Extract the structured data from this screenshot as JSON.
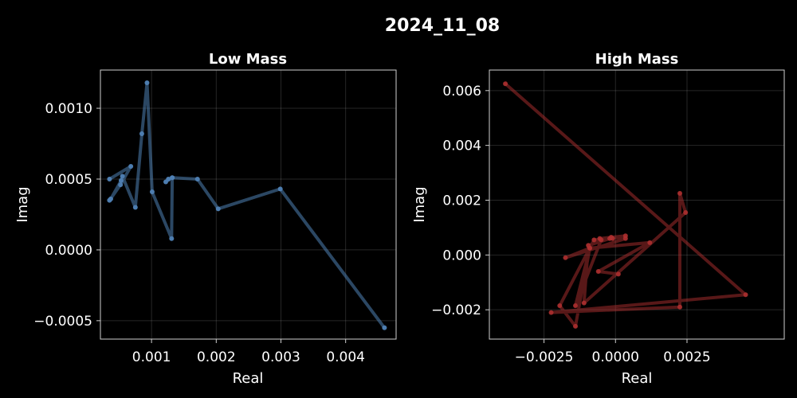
{
  "figure": {
    "title": "2024_11_08",
    "background": "#000000"
  },
  "chart_data": [
    {
      "type": "line",
      "title": "Low Mass",
      "xlabel": "Real",
      "ylabel": "Imag",
      "xlim": [
        0.00021,
        0.00478
      ],
      "ylim": [
        -0.00063,
        0.00127
      ],
      "xticks": [
        0.001,
        0.002,
        0.003,
        0.004
      ],
      "xtick_labels": [
        "0.001",
        "0.002",
        "0.003",
        "0.004"
      ],
      "yticks": [
        -0.0005,
        0.0,
        0.0005,
        0.001
      ],
      "ytick_labels": [
        "−0.0005",
        "0.0000",
        "0.0005",
        "0.0010"
      ],
      "grid": true,
      "color": "#4f81b4",
      "series": [
        {
          "x": [
            0.00035,
            0.00068,
            0.00052,
            0.00035,
            0.00037,
            0.00053,
            0.00055,
            0.00075,
            0.00085,
            0.00093,
            0.00101,
            0.00131,
            0.00132,
            0.00122,
            0.00126,
            0.00132,
            0.00171,
            0.00203,
            0.00299,
            0.0046
          ],
          "y": [
            0.0005,
            0.00059,
            0.00046,
            0.00035,
            0.00036,
            0.00049,
            0.00052,
            0.0003,
            0.00082,
            0.00118,
            0.00041,
            8e-05,
            0.00051,
            0.00048,
            0.0005,
            0.00051,
            0.0005,
            0.00029,
            0.00043,
            -0.00055
          ]
        }
      ]
    },
    {
      "type": "line",
      "title": "High Mass",
      "xlabel": "Real",
      "ylabel": "Imag",
      "xlim": [
        -0.00441,
        0.0059
      ],
      "ylim": [
        -0.00307,
        0.00675
      ],
      "xticks": [
        -0.0025,
        0.0,
        0.0025
      ],
      "xtick_labels": [
        "−0.0025",
        "0.0000",
        "0.0025"
      ],
      "yticks": [
        -0.002,
        0.0,
        0.002,
        0.004,
        0.006
      ],
      "ytick_labels": [
        "−0.002",
        "0.000",
        "0.002",
        "0.004",
        "0.006"
      ],
      "grid": true,
      "color": "#b03030",
      "series": [
        {
          "x": [
            -0.00385,
            0.00455,
            -0.00225,
            0.00225,
            0.00225,
            0.00245,
            -0.0011,
            -0.00095,
            -0.0002,
            -0.00055,
            0.00035,
            -0.0005,
            -0.0014,
            -0.0009,
            -0.0014,
            -0.00195,
            -0.00075,
            -0.0001,
            -0.00015,
            0.00035,
            -0.00175,
            -0.0009,
            0.0012,
            -0.0006,
            0.0001
          ],
          "y": [
            0.00625,
            -0.00145,
            -0.0021,
            -0.0019,
            0.00225,
            0.00155,
            -0.00175,
            0.00035,
            0.0006,
            0.0006,
            0.0007,
            0.00055,
            -0.00185,
            0.00025,
            -0.0026,
            -0.00185,
            0.00055,
            0.0006,
            0.00065,
            0.0006,
            -0.0001,
            0.00025,
            0.00045,
            -0.0006,
            -0.0007
          ]
        }
      ]
    }
  ]
}
